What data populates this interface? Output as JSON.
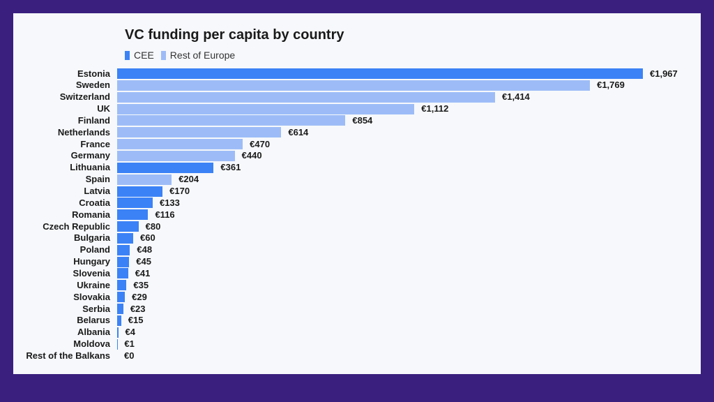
{
  "chart_data": {
    "type": "bar",
    "orientation": "horizontal",
    "title": "VC funding per capita by country",
    "legend": [
      {
        "name": "CEE",
        "color": "#3b82f6"
      },
      {
        "name": "Rest of Europe",
        "color": "#9dbcf7"
      }
    ],
    "legend_position": "top-left",
    "grid": false,
    "xlim": [
      0,
      1967
    ],
    "categories": [
      "Estonia",
      "Sweden",
      "Switzerland",
      "UK",
      "Finland",
      "Netherlands",
      "France",
      "Germany",
      "Lithuania",
      "Spain",
      "Latvia",
      "Croatia",
      "Romania",
      "Czech Republic",
      "Bulgaria",
      "Poland",
      "Hungary",
      "Slovenia",
      "Ukraine",
      "Slovakia",
      "Serbia",
      "Belarus",
      "Albania",
      "Moldova",
      "Rest of the Balkans"
    ],
    "values": [
      1967,
      1769,
      1414,
      1112,
      854,
      614,
      470,
      440,
      361,
      204,
      170,
      133,
      116,
      80,
      60,
      48,
      45,
      41,
      35,
      29,
      23,
      15,
      4,
      1,
      0
    ],
    "value_labels": [
      "€1,967",
      "€1,769",
      "€1,414",
      "€1,112",
      "€854",
      "€614",
      "€470",
      "€440",
      "€361",
      "€204",
      "€170",
      "€133",
      "€116",
      "€80",
      "€60",
      "€48",
      "€45",
      "€41",
      "€35",
      "€29",
      "€23",
      "€15",
      "€4",
      "€1",
      "€0"
    ],
    "groups": [
      "CEE",
      "Rest of Europe",
      "Rest of Europe",
      "Rest of Europe",
      "Rest of Europe",
      "Rest of Europe",
      "Rest of Europe",
      "Rest of Europe",
      "CEE",
      "Rest of Europe",
      "CEE",
      "CEE",
      "CEE",
      "CEE",
      "CEE",
      "CEE",
      "CEE",
      "CEE",
      "CEE",
      "CEE",
      "CEE",
      "CEE",
      "CEE",
      "CEE",
      "CEE"
    ]
  }
}
